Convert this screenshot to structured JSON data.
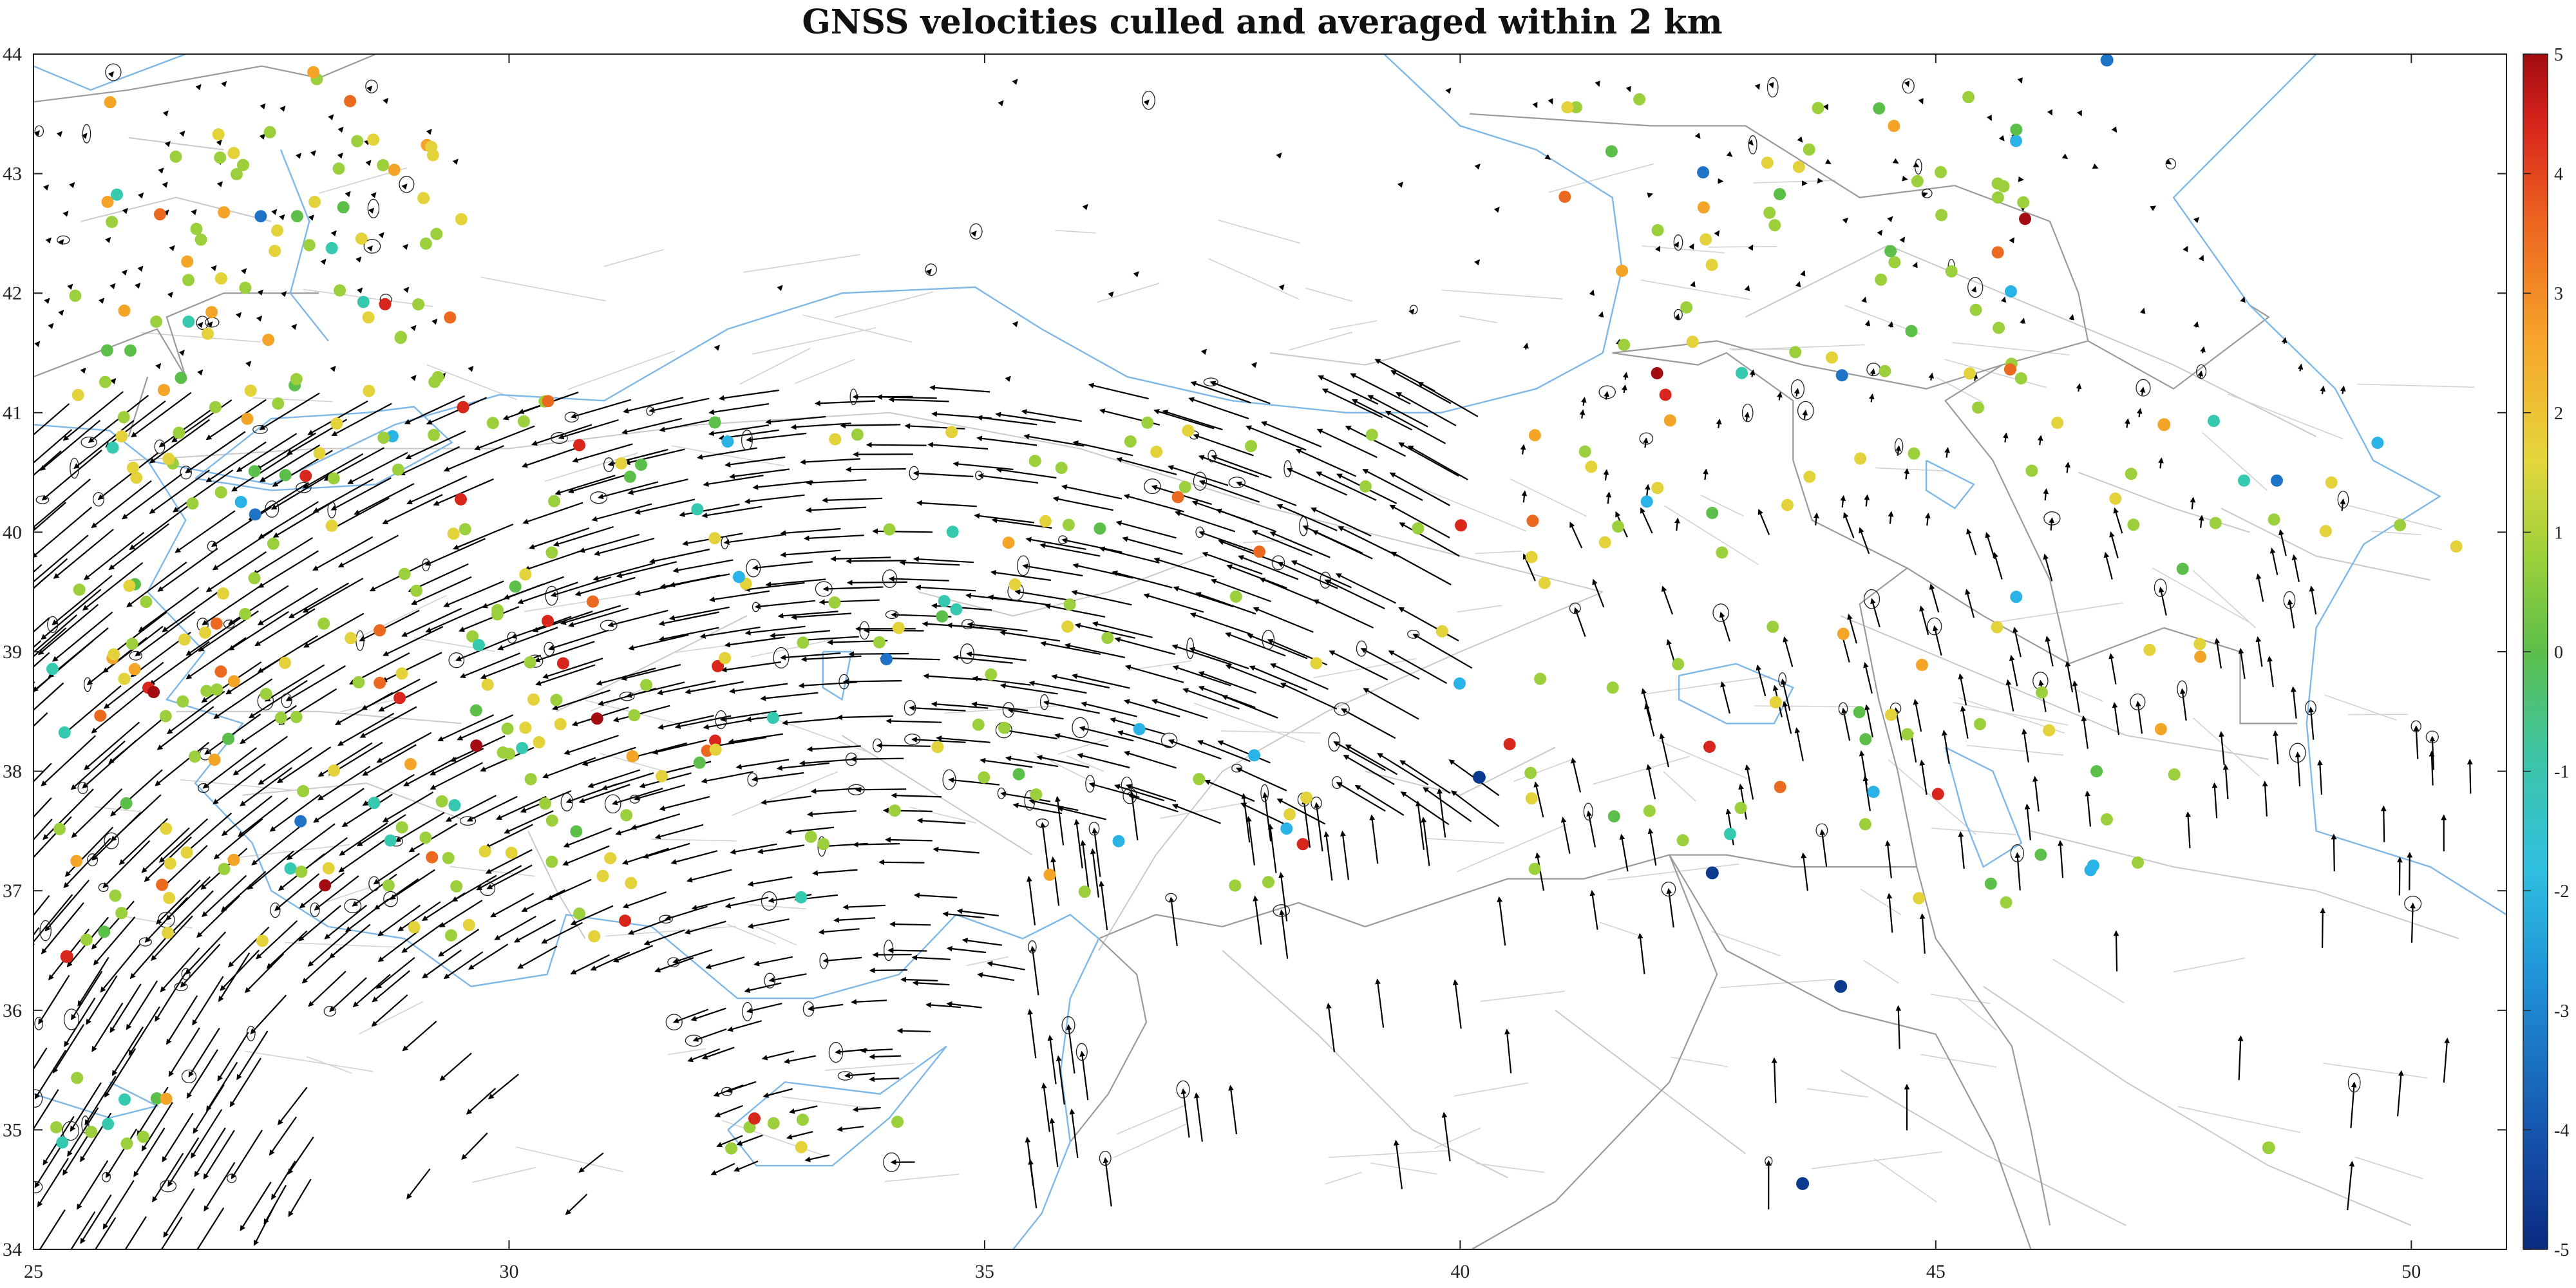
{
  "title": "GNSS velocities culled and averaged within 2 km",
  "map": {
    "lon_range": [
      25,
      51
    ],
    "lat_range": [
      34,
      44
    ],
    "x_ticks": [
      "25",
      "30",
      "35",
      "40",
      "45",
      "50"
    ],
    "y_ticks": [
      "34",
      "35",
      "36",
      "37",
      "38",
      "39",
      "40",
      "41",
      "42",
      "43",
      "44"
    ],
    "coastline_color": "#7fb8e6",
    "border_color": "#9a9a9a",
    "fault_color": "#c9c9c9",
    "arrow_color": "#000000"
  },
  "colorbar": {
    "ticks": [
      "5",
      "4",
      "3",
      "2",
      "1",
      "0",
      "-1",
      "-2",
      "-3",
      "-4",
      "-5"
    ],
    "range": [
      -5,
      5
    ],
    "colormap": "jet-like (blue -> cyan -> green -> yellow -> orange -> red)",
    "colors": [
      "#0b3a8e",
      "#1f73c6",
      "#2ab3e6",
      "#35c9b0",
      "#5cbf4a",
      "#9bcf3c",
      "#e3d23a",
      "#f4a528",
      "#ec6a1f",
      "#d9261c",
      "#a30d12"
    ]
  },
  "notes": {
    "vertical_colored_dots": "dot color = vertical velocity in mm/yr"
  }
}
